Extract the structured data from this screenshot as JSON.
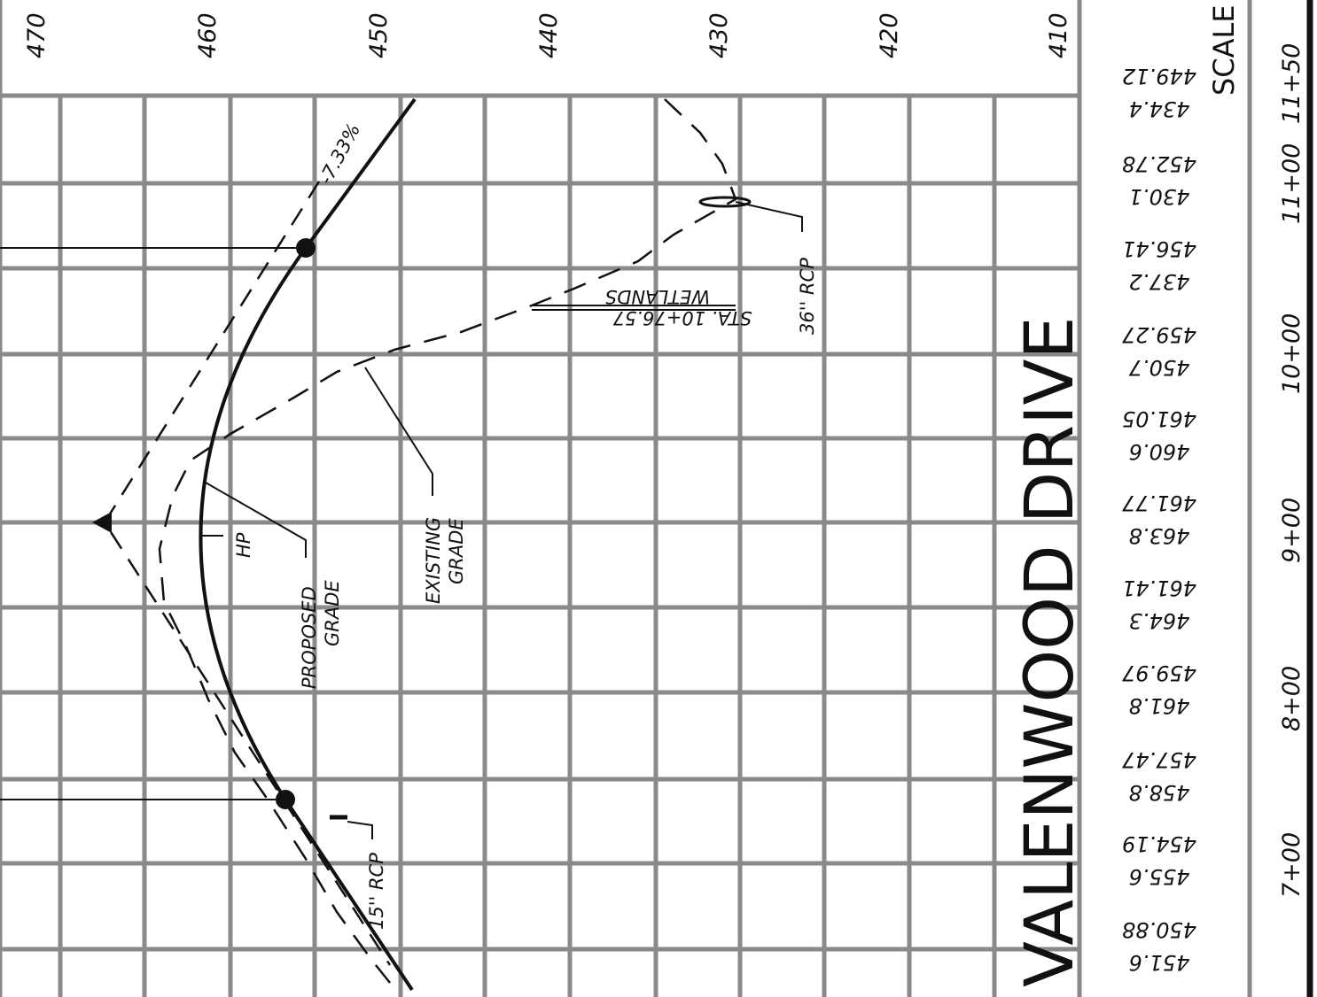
{
  "drawing": {
    "title": "VALENWOOD DRIVE",
    "scale_label": "SCALE",
    "elevation_labels": [
      "470",
      "460",
      "450",
      "440",
      "430",
      "420",
      "410"
    ],
    "station_labels": [
      "11+00",
      "11+50",
      "10+00",
      "9+00",
      "8+00",
      "7+00"
    ],
    "grade_rows": [
      {
        "existing": "449.12",
        "proposed": "434.4"
      },
      {
        "existing": "452.78",
        "proposed": "430.1"
      },
      {
        "existing": "456.41",
        "proposed": "437.2"
      },
      {
        "existing": "459.27",
        "proposed": "450.7"
      },
      {
        "existing": "461.05",
        "proposed": "460.6"
      },
      {
        "existing": "461.77",
        "proposed": "463.8"
      },
      {
        "existing": "461.41",
        "proposed": "464.3"
      },
      {
        "existing": "459.97",
        "proposed": "461.8"
      },
      {
        "existing": "457.47",
        "proposed": "458.8"
      },
      {
        "existing": "454.19",
        "proposed": "455.6"
      },
      {
        "existing": "450.88",
        "proposed": "451.6"
      }
    ],
    "annotations": {
      "grade_percent": "-7.33%",
      "high_point": "HP",
      "proposed_grade_line1": "PROPOSED",
      "proposed_grade_line2": "GRADE",
      "existing_grade_line1": "EXISTING",
      "existing_grade_line2": "GRADE",
      "pipe_36": "36'' RCP",
      "pipe_15": "15'' RCP",
      "wetlands_station": "STA. 10+76.57",
      "wetlands_label": "WETLANDS"
    }
  }
}
